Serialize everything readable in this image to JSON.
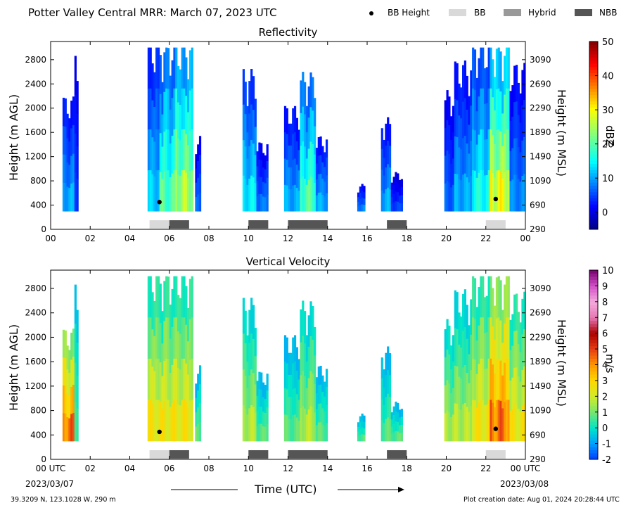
{
  "header": {
    "title": "Potter Valley Central MRR:  March 07, 2023 UTC",
    "legend": [
      {
        "label": "BB Height",
        "kind": "dot",
        "color": "#000000"
      },
      {
        "label": "BB",
        "kind": "box",
        "color": "#d9d9d9"
      },
      {
        "label": "Hybrid",
        "kind": "box",
        "color": "#999999"
      },
      {
        "label": "NBB",
        "kind": "box",
        "color": "#555555"
      }
    ]
  },
  "chart_data": [
    {
      "type": "heatmap",
      "title": "Reflectivity",
      "ylabel": "Height (m AGL)",
      "y2label": "Height (m MSL)",
      "x_ticks": [
        "00",
        "02",
        "04",
        "06",
        "08",
        "10",
        "12",
        "14",
        "16",
        "18",
        "20",
        "22",
        "00"
      ],
      "y_ticks": [
        "0",
        "400",
        "800",
        "1200",
        "1600",
        "2000",
        "2400",
        "2800"
      ],
      "y2_ticks": [
        "290",
        "690",
        "1090",
        "1490",
        "1890",
        "2290",
        "2690",
        "3090"
      ],
      "xlim": [
        0,
        24
      ],
      "ylim": [
        0,
        3100
      ],
      "colorbar": {
        "label": "dBZ",
        "range": [
          -5,
          50
        ],
        "ticks": [
          "0",
          "10",
          "20",
          "30",
          "40",
          "50"
        ],
        "tick_values": [
          0,
          10,
          20,
          30,
          40,
          50
        ],
        "colormap": "jet"
      },
      "bb_height_points": [
        {
          "x": 5.5,
          "y": 450
        },
        {
          "x": 22.5,
          "y": 500
        }
      ],
      "rain_type_bars": [
        {
          "start": 5.0,
          "end": 6.0,
          "type": "BB"
        },
        {
          "start": 6.0,
          "end": 7.0,
          "type": "NBB"
        },
        {
          "start": 10.0,
          "end": 11.0,
          "type": "NBB"
        },
        {
          "start": 12.0,
          "end": 14.0,
          "type": "NBB"
        },
        {
          "start": 17.0,
          "end": 18.0,
          "type": "NBB"
        },
        {
          "start": 22.0,
          "end": 23.0,
          "type": "BB"
        }
      ],
      "precip_segments": [
        {
          "start": 0.6,
          "end": 1.2,
          "top": 2050,
          "peak": 12
        },
        {
          "start": 1.2,
          "end": 1.4,
          "top": 3000,
          "peak": 6
        },
        {
          "start": 4.9,
          "end": 5.5,
          "top": 3000,
          "peak": 14
        },
        {
          "start": 5.5,
          "end": 6.3,
          "top": 3000,
          "peak": 22
        },
        {
          "start": 6.3,
          "end": 7.2,
          "top": 3000,
          "peak": 28
        },
        {
          "start": 7.3,
          "end": 7.6,
          "top": 1400,
          "peak": 8
        },
        {
          "start": 9.7,
          "end": 10.4,
          "top": 2500,
          "peak": 16
        },
        {
          "start": 10.4,
          "end": 11.0,
          "top": 1300,
          "peak": 9
        },
        {
          "start": 11.8,
          "end": 12.6,
          "top": 1900,
          "peak": 12
        },
        {
          "start": 12.6,
          "end": 13.4,
          "top": 2450,
          "peak": 22
        },
        {
          "start": 13.4,
          "end": 14.0,
          "top": 1400,
          "peak": 12
        },
        {
          "start": 15.5,
          "end": 15.9,
          "top": 600,
          "peak": 10
        },
        {
          "start": 16.7,
          "end": 17.2,
          "top": 1700,
          "peak": 12
        },
        {
          "start": 17.2,
          "end": 17.8,
          "top": 800,
          "peak": 6
        },
        {
          "start": 19.9,
          "end": 20.4,
          "top": 2150,
          "peak": 8
        },
        {
          "start": 20.4,
          "end": 21.3,
          "top": 2650,
          "peak": 12
        },
        {
          "start": 21.3,
          "end": 22.2,
          "top": 3000,
          "peak": 18
        },
        {
          "start": 22.2,
          "end": 23.2,
          "top": 3000,
          "peak": 32
        },
        {
          "start": 23.2,
          "end": 24.0,
          "top": 2600,
          "peak": 10
        }
      ]
    },
    {
      "type": "heatmap",
      "title": "Vertical Velocity",
      "ylabel": "Height (m AGL)",
      "y2label": "Height (m MSL)",
      "xlabel": "Time (UTC)",
      "x_ticks": [
        "00 UTC",
        "02",
        "04",
        "06",
        "08",
        "10",
        "12",
        "14",
        "16",
        "18",
        "20",
        "22",
        "00 UTC"
      ],
      "date_labels": [
        "2023/03/07",
        "2023/03/08"
      ],
      "y_ticks": [
        "0",
        "400",
        "800",
        "1200",
        "1600",
        "2000",
        "2400",
        "2800"
      ],
      "y2_ticks": [
        "290",
        "690",
        "1090",
        "1490",
        "1890",
        "2290",
        "2690",
        "3090"
      ],
      "xlim": [
        0,
        24
      ],
      "ylim": [
        0,
        3100
      ],
      "colorbar": {
        "label": "m/s",
        "range": [
          -2,
          10
        ],
        "ticks": [
          "-2",
          "-1",
          "0",
          "1",
          "2",
          "3",
          "4",
          "5",
          "6",
          "7",
          "8",
          "9",
          "10"
        ],
        "tick_values": [
          -2,
          -1,
          0,
          1,
          2,
          3,
          4,
          5,
          6,
          7,
          8,
          9,
          10
        ],
        "colormap": "velocity"
      },
      "bb_height_points": [
        {
          "x": 5.5,
          "y": 450
        },
        {
          "x": 22.5,
          "y": 500
        }
      ],
      "rain_type_bars": [
        {
          "start": 5.0,
          "end": 6.0,
          "type": "BB"
        },
        {
          "start": 6.0,
          "end": 7.0,
          "type": "NBB"
        },
        {
          "start": 10.0,
          "end": 11.0,
          "type": "NBB"
        },
        {
          "start": 12.0,
          "end": 14.0,
          "type": "NBB"
        },
        {
          "start": 17.0,
          "end": 18.0,
          "type": "NBB"
        },
        {
          "start": 22.0,
          "end": 23.0,
          "type": "BB"
        }
      ],
      "precip_segments": [
        {
          "start": 0.6,
          "end": 1.2,
          "top": 2000,
          "peak": 5
        },
        {
          "start": 1.2,
          "end": 1.4,
          "top": 3000,
          "peak": 1
        },
        {
          "start": 4.9,
          "end": 5.5,
          "top": 3000,
          "peak": 3
        },
        {
          "start": 5.5,
          "end": 6.3,
          "top": 3000,
          "peak": 3
        },
        {
          "start": 6.3,
          "end": 7.2,
          "top": 3000,
          "peak": 3
        },
        {
          "start": 7.3,
          "end": 7.6,
          "top": 1400,
          "peak": 1
        },
        {
          "start": 9.7,
          "end": 10.4,
          "top": 2500,
          "peak": 2
        },
        {
          "start": 10.4,
          "end": 11.0,
          "top": 1300,
          "peak": 1
        },
        {
          "start": 11.8,
          "end": 12.6,
          "top": 1900,
          "peak": 1
        },
        {
          "start": 12.6,
          "end": 13.4,
          "top": 2450,
          "peak": 2
        },
        {
          "start": 13.4,
          "end": 14.0,
          "top": 1400,
          "peak": 1
        },
        {
          "start": 15.5,
          "end": 15.9,
          "top": 600,
          "peak": 1
        },
        {
          "start": 16.7,
          "end": 17.2,
          "top": 1700,
          "peak": 1
        },
        {
          "start": 17.2,
          "end": 17.8,
          "top": 800,
          "peak": 1
        },
        {
          "start": 19.9,
          "end": 20.4,
          "top": 2150,
          "peak": 2
        },
        {
          "start": 20.4,
          "end": 21.3,
          "top": 2650,
          "peak": 2
        },
        {
          "start": 21.3,
          "end": 22.2,
          "top": 3000,
          "peak": 3
        },
        {
          "start": 22.2,
          "end": 23.2,
          "top": 3000,
          "peak": 5
        },
        {
          "start": 23.2,
          "end": 24.0,
          "top": 2600,
          "peak": 3
        }
      ]
    }
  ],
  "footer": {
    "location": "39.3209 N, 123.1028 W, 290 m",
    "created": "Plot creation date: Aug 01, 2024 20:28:44 UTC"
  }
}
